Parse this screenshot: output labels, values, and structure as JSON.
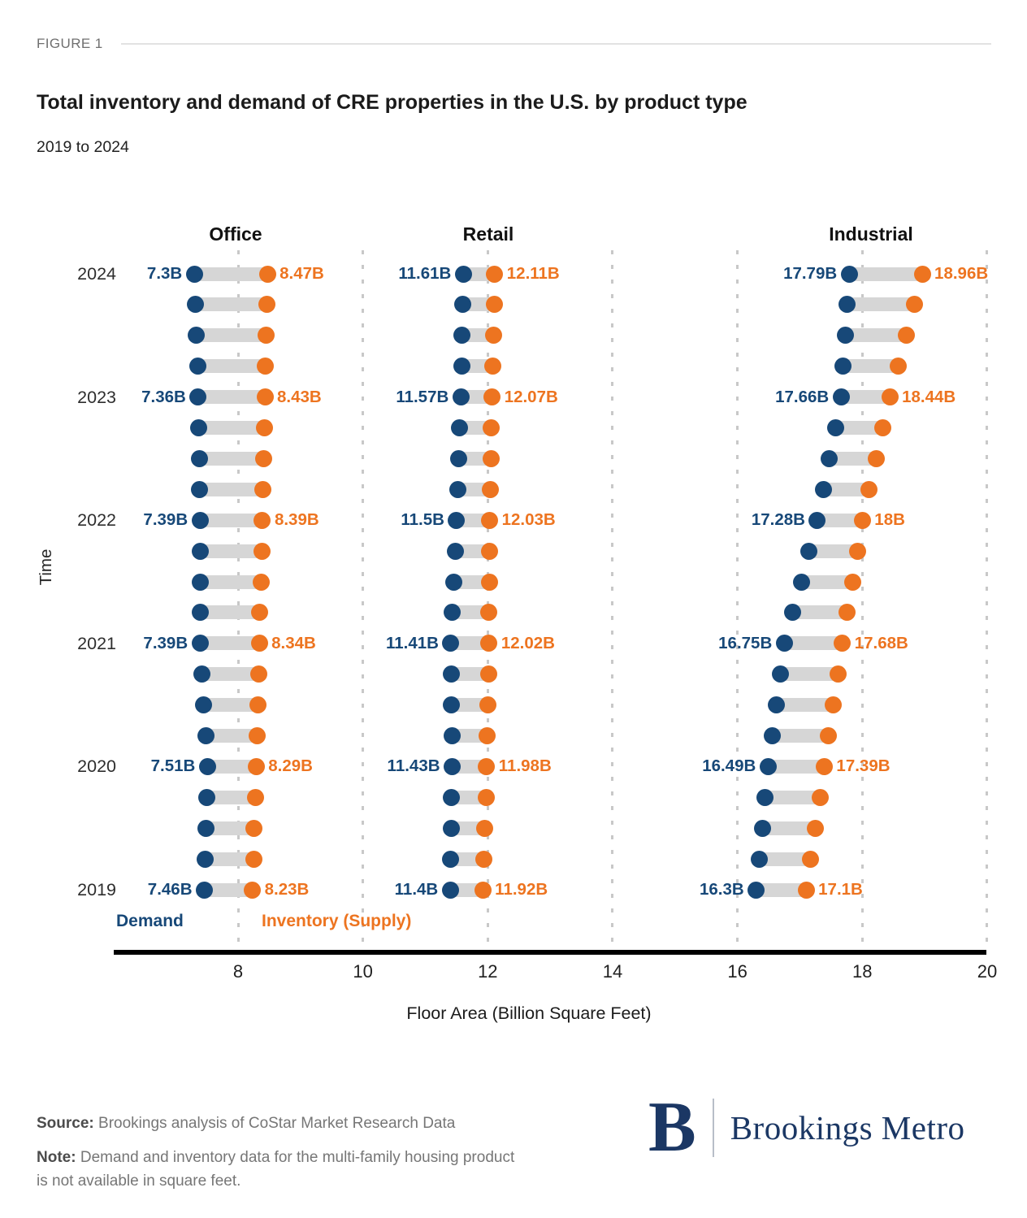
{
  "header": {
    "figure_label": "FIGURE 1",
    "title": "Total inventory and demand of CRE properties in the U.S. by product type",
    "subtitle": "2019 to 2024"
  },
  "colors": {
    "demand": "#174878",
    "inventory": "#ed7420",
    "connector_bar": "#d6d6d6",
    "gridline": "#c8c8c8",
    "axis": "#000000"
  },
  "legend": {
    "demand_label": "Demand",
    "inventory_label": "Inventory (Supply)"
  },
  "chart_data": {
    "type": "dumbbell",
    "title": "Total inventory and demand of CRE properties in the U.S. by product type",
    "subtitle": "2019 to 2024",
    "xlabel": "Floor Area (Billion Square Feet)",
    "ylabel": "Time",
    "x_ticks": [
      8,
      10,
      12,
      14,
      16,
      18,
      20
    ],
    "xlim": [
      6,
      20
    ],
    "grid": true,
    "legend_position": "bottom-left inside plot",
    "panels": [
      {
        "key": "office",
        "label": "Office"
      },
      {
        "key": "retail",
        "label": "Retail"
      },
      {
        "key": "industrial",
        "label": "Industrial"
      }
    ],
    "series_meaning": {
      "first_value": "Demand",
      "second_value": "Inventory (Supply)"
    },
    "rows": [
      {
        "year": "2024",
        "office": [
          7.3,
          8.47
        ],
        "retail": [
          11.61,
          12.11
        ],
        "industrial": [
          17.79,
          18.96
        ],
        "labels": {
          "office": [
            "7.3B",
            "8.47B"
          ],
          "retail": [
            "11.61B",
            "12.11B"
          ],
          "industrial": [
            "17.79B",
            "18.96B"
          ]
        }
      },
      {
        "year": "",
        "office": [
          7.32,
          8.46
        ],
        "retail": [
          11.6,
          12.1
        ],
        "industrial": [
          17.76,
          18.83
        ]
      },
      {
        "year": "",
        "office": [
          7.33,
          8.45
        ],
        "retail": [
          11.59,
          12.09
        ],
        "industrial": [
          17.73,
          18.7
        ]
      },
      {
        "year": "",
        "office": [
          7.35,
          8.44
        ],
        "retail": [
          11.58,
          12.08
        ],
        "industrial": [
          17.69,
          18.57
        ]
      },
      {
        "year": "2023",
        "office": [
          7.36,
          8.43
        ],
        "retail": [
          11.57,
          12.07
        ],
        "industrial": [
          17.66,
          18.44
        ],
        "labels": {
          "office": [
            "7.36B",
            "8.43B"
          ],
          "retail": [
            "11.57B",
            "12.07B"
          ],
          "industrial": [
            "17.66B",
            "18.44B"
          ]
        }
      },
      {
        "year": "",
        "office": [
          7.37,
          8.42
        ],
        "retail": [
          11.55,
          12.06
        ],
        "industrial": [
          17.57,
          18.33
        ]
      },
      {
        "year": "",
        "office": [
          7.38,
          8.41
        ],
        "retail": [
          11.54,
          12.05
        ],
        "industrial": [
          17.47,
          18.22
        ]
      },
      {
        "year": "",
        "office": [
          7.38,
          8.4
        ],
        "retail": [
          11.52,
          12.04
        ],
        "industrial": [
          17.38,
          18.11
        ]
      },
      {
        "year": "2022",
        "office": [
          7.39,
          8.39
        ],
        "retail": [
          11.5,
          12.03
        ],
        "industrial": [
          17.28,
          18.0
        ],
        "labels": {
          "office": [
            "7.39B",
            "8.39B"
          ],
          "retail": [
            "11.5B",
            "12.03B"
          ],
          "industrial": [
            "17.28B",
            "18B"
          ]
        }
      },
      {
        "year": "",
        "office": [
          7.39,
          8.38
        ],
        "retail": [
          11.48,
          12.03
        ],
        "industrial": [
          17.15,
          17.92
        ]
      },
      {
        "year": "",
        "office": [
          7.39,
          8.37
        ],
        "retail": [
          11.46,
          12.03
        ],
        "industrial": [
          17.02,
          17.84
        ]
      },
      {
        "year": "",
        "office": [
          7.39,
          8.35
        ],
        "retail": [
          11.43,
          12.02
        ],
        "industrial": [
          16.88,
          17.76
        ]
      },
      {
        "year": "2021",
        "office": [
          7.39,
          8.34
        ],
        "retail": [
          11.41,
          12.02
        ],
        "industrial": [
          16.75,
          17.68
        ],
        "labels": {
          "office": [
            "7.39B",
            "8.34B"
          ],
          "retail": [
            "11.41B",
            "12.02B"
          ],
          "industrial": [
            "16.75B",
            "17.68B"
          ]
        }
      },
      {
        "year": "",
        "office": [
          7.42,
          8.33
        ],
        "retail": [
          11.42,
          12.01
        ],
        "industrial": [
          16.69,
          17.61
        ]
      },
      {
        "year": "",
        "office": [
          7.45,
          8.32
        ],
        "retail": [
          11.42,
          12.0
        ],
        "industrial": [
          16.62,
          17.54
        ]
      },
      {
        "year": "",
        "office": [
          7.48,
          8.3
        ],
        "retail": [
          11.43,
          11.99
        ],
        "industrial": [
          16.56,
          17.46
        ]
      },
      {
        "year": "2020",
        "office": [
          7.51,
          8.29
        ],
        "retail": [
          11.43,
          11.98
        ],
        "industrial": [
          16.49,
          17.39
        ],
        "labels": {
          "office": [
            "7.51B",
            "8.29B"
          ],
          "retail": [
            "11.43B",
            "11.98B"
          ],
          "industrial": [
            "16.49B",
            "17.39B"
          ]
        }
      },
      {
        "year": "",
        "office": [
          7.5,
          8.28
        ],
        "retail": [
          11.42,
          11.97
        ],
        "industrial": [
          16.44,
          17.32
        ]
      },
      {
        "year": "",
        "office": [
          7.49,
          8.26
        ],
        "retail": [
          11.42,
          11.95
        ],
        "industrial": [
          16.4,
          17.25
        ]
      },
      {
        "year": "",
        "office": [
          7.47,
          8.25
        ],
        "retail": [
          11.41,
          11.94
        ],
        "industrial": [
          16.35,
          17.17
        ]
      },
      {
        "year": "2019",
        "office": [
          7.46,
          8.23
        ],
        "retail": [
          11.4,
          11.92
        ],
        "industrial": [
          16.3,
          17.1
        ],
        "labels": {
          "office": [
            "7.46B",
            "8.23B"
          ],
          "retail": [
            "11.4B",
            "11.92B"
          ],
          "industrial": [
            "16.3B",
            "17.1B"
          ]
        }
      }
    ]
  },
  "footer": {
    "source_label": "Source:",
    "source_text": "Brookings analysis of CoStar Market Research Data",
    "note_label": "Note:",
    "note_text": "Demand and inventory data for the multi-family housing product is not available in square feet."
  },
  "logo": {
    "monogram": "B",
    "name": "Brookings Metro"
  }
}
